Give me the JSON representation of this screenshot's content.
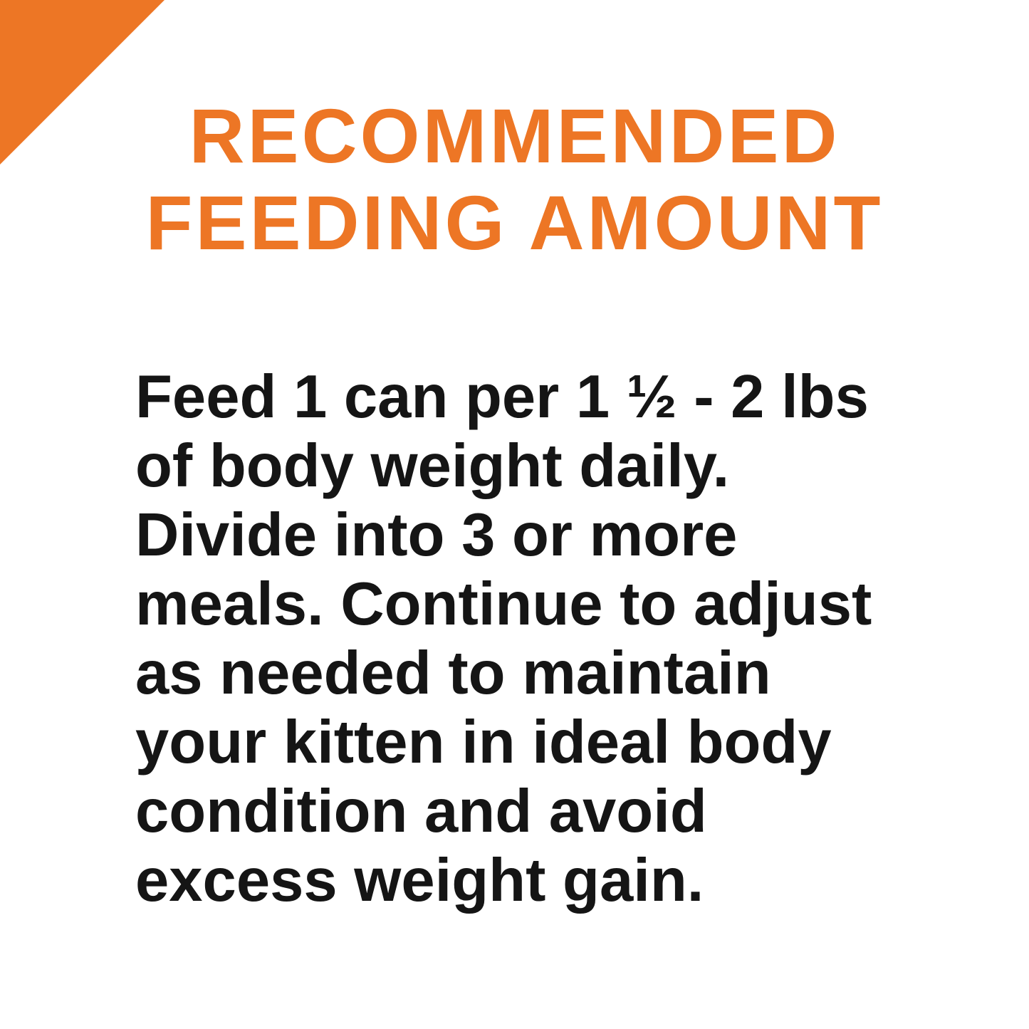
{
  "theme": {
    "background": "#FFFFFF",
    "accent_orange": "#ED7625",
    "body_text_color": "#151515"
  },
  "title": {
    "lines": [
      "RECOMMENDED",
      "FEEDING AMOUNT"
    ]
  },
  "body": {
    "lines": [
      "Feed 1 can per 1 ½ - 2 lbs",
      "of body weight daily.",
      "Divide into 3 or more",
      "meals. Continue to adjust",
      "as needed to maintain",
      "your kitten in ideal body",
      "condition and avoid",
      "excess weight gain."
    ]
  }
}
